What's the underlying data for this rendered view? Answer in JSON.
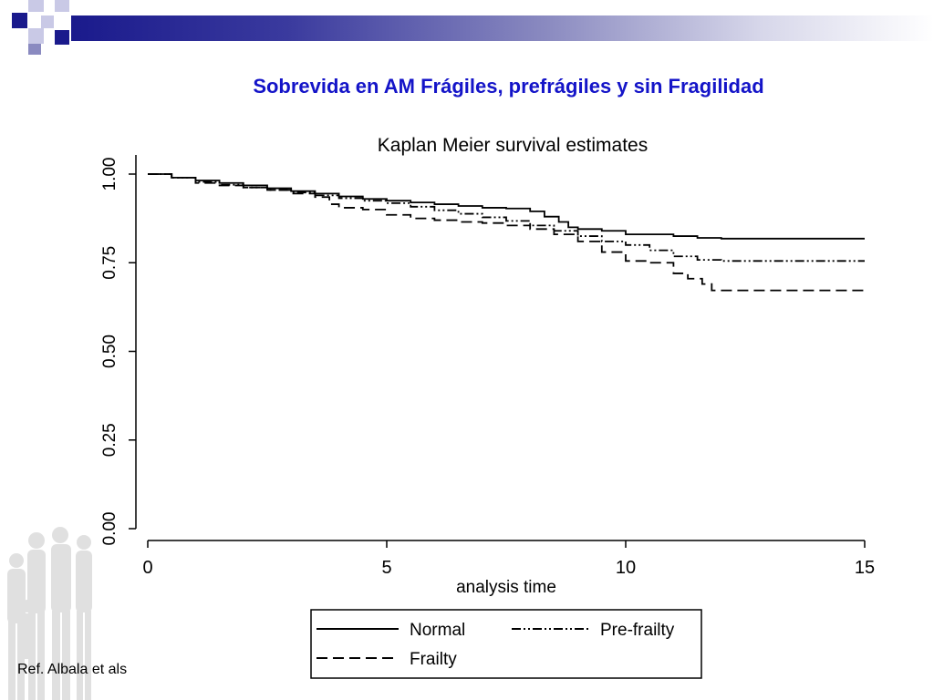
{
  "slide": {
    "title": "Sobrevida en AM Frágiles, prefrágiles y sin Fragilidad",
    "reference": "Ref. Albala et als",
    "accent_color": "#1414c8",
    "decor_color": "#1a1a8c"
  },
  "chart_data": {
    "type": "line",
    "title": "Kaplan Meier survival estimates",
    "xlabel": "analysis time",
    "ylabel": "",
    "xlim": [
      0,
      15
    ],
    "ylim": [
      0,
      1
    ],
    "x_ticks": [
      "0",
      "5",
      "10",
      "15"
    ],
    "y_ticks": [
      "0.00",
      "0.25",
      "0.50",
      "0.75",
      "1.00"
    ],
    "grid": false,
    "legend_position": "bottom",
    "series": [
      {
        "name": "Normal",
        "dash": "solid",
        "x": [
          0,
          0.5,
          1.0,
          1.5,
          2.0,
          2.5,
          3.0,
          3.5,
          4.0,
          4.5,
          5.0,
          5.5,
          6.0,
          6.5,
          7.0,
          7.5,
          8.0,
          8.3,
          8.6,
          8.8,
          9.0,
          9.5,
          10.0,
          10.5,
          11.0,
          11.5,
          12.0,
          13.0,
          14.0,
          15.0
        ],
        "values": [
          1.0,
          0.99,
          0.982,
          0.975,
          0.968,
          0.96,
          0.952,
          0.945,
          0.937,
          0.93,
          0.925,
          0.92,
          0.915,
          0.91,
          0.905,
          0.903,
          0.895,
          0.88,
          0.865,
          0.85,
          0.845,
          0.84,
          0.83,
          0.83,
          0.825,
          0.82,
          0.818,
          0.818,
          0.818,
          0.818
        ]
      },
      {
        "name": "Pre-frailty",
        "dash": "dashdot",
        "x": [
          0,
          0.5,
          1.0,
          1.5,
          2.0,
          2.5,
          3.0,
          3.5,
          4.0,
          4.5,
          5.0,
          5.5,
          6.0,
          6.5,
          7.0,
          7.5,
          8.0,
          8.5,
          9.0,
          9.5,
          10.0,
          10.5,
          11.0,
          11.5,
          12.0,
          13.0,
          14.0,
          15.0
        ],
        "values": [
          1.0,
          0.99,
          0.978,
          0.97,
          0.962,
          0.955,
          0.948,
          0.94,
          0.932,
          0.925,
          0.918,
          0.908,
          0.898,
          0.888,
          0.878,
          0.868,
          0.855,
          0.84,
          0.825,
          0.81,
          0.8,
          0.785,
          0.768,
          0.758,
          0.755,
          0.755,
          0.755,
          0.755
        ]
      },
      {
        "name": "Frailty",
        "dash": "dashed",
        "x": [
          0,
          0.5,
          1.0,
          1.5,
          2.0,
          2.5,
          3.0,
          3.5,
          3.8,
          4.0,
          4.5,
          5.0,
          5.5,
          6.0,
          6.5,
          7.0,
          7.5,
          8.0,
          8.5,
          9.0,
          9.5,
          10.0,
          10.5,
          11.0,
          11.3,
          11.6,
          11.8,
          12.5,
          13.0,
          14.0,
          15.0
        ],
        "values": [
          1.0,
          0.99,
          0.975,
          0.968,
          0.962,
          0.955,
          0.945,
          0.935,
          0.915,
          0.905,
          0.9,
          0.885,
          0.875,
          0.87,
          0.865,
          0.862,
          0.855,
          0.845,
          0.83,
          0.81,
          0.78,
          0.755,
          0.75,
          0.72,
          0.705,
          0.69,
          0.672,
          0.672,
          0.672,
          0.672,
          0.672
        ]
      }
    ]
  }
}
